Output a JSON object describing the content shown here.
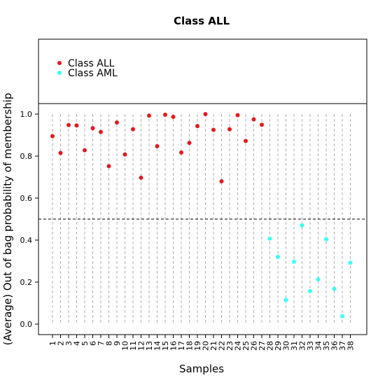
{
  "chart_data": {
    "type": "scatter",
    "title": "Class ALL",
    "xlabel": "Samples",
    "ylabel": "(Average) Out of bag probability of membership",
    "ylim": [
      0,
      1
    ],
    "yticks": [
      "0.0",
      "0.2",
      "0.4",
      "0.6",
      "0.8",
      "1.0"
    ],
    "categories": [
      "1",
      "2",
      "3",
      "4",
      "5",
      "6",
      "7",
      "8",
      "9",
      "10",
      "11",
      "12",
      "13",
      "14",
      "15",
      "16",
      "17",
      "18",
      "19",
      "20",
      "21",
      "22",
      "23",
      "24",
      "25",
      "26",
      "27",
      "28",
      "29",
      "30",
      "31",
      "32",
      "33",
      "34",
      "35",
      "36",
      "37",
      "38"
    ],
    "threshold": 0.5,
    "legend_position": "top-left",
    "series": [
      {
        "name": "Class ALL",
        "color": "#e41a1c",
        "x": [
          1,
          2,
          3,
          4,
          5,
          6,
          7,
          8,
          9,
          10,
          11,
          12,
          13,
          14,
          15,
          16,
          17,
          18,
          19,
          20,
          21,
          22,
          23,
          24,
          25,
          26,
          27
        ],
        "values": [
          0.895,
          0.815,
          0.948,
          0.946,
          0.828,
          0.933,
          0.915,
          0.752,
          0.96,
          0.808,
          0.928,
          0.697,
          0.993,
          0.847,
          0.997,
          0.987,
          0.817,
          0.863,
          0.943,
          1.0,
          0.925,
          0.68,
          0.928,
          0.995,
          0.872,
          0.975,
          0.949
        ]
      },
      {
        "name": "Class AML",
        "color": "#33ffff",
        "x": [
          28,
          29,
          30,
          31,
          32,
          33,
          34,
          35,
          36,
          37,
          38
        ],
        "values": [
          0.407,
          0.32,
          0.115,
          0.297,
          0.47,
          0.157,
          0.213,
          0.404,
          0.168,
          0.038,
          0.292
        ]
      }
    ]
  }
}
